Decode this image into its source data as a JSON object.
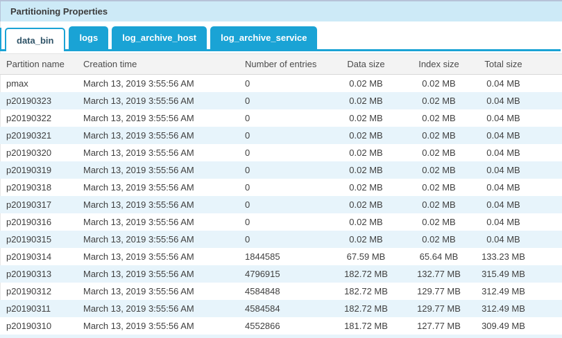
{
  "panel": {
    "title": "Partitioning Properties"
  },
  "tabs": [
    {
      "label": "data_bin",
      "active": true
    },
    {
      "label": "logs",
      "active": false
    },
    {
      "label": "log_archive_host",
      "active": false
    },
    {
      "label": "log_archive_service",
      "active": false
    }
  ],
  "table": {
    "columns": [
      "Partition name",
      "Creation time",
      "Number of entries",
      "Data size",
      "Index size",
      "Total size"
    ],
    "rows": [
      [
        "pmax",
        "March 13, 2019 3:55:56 AM",
        "0",
        "0.02 MB",
        "0.02 MB",
        "0.04 MB"
      ],
      [
        "p20190323",
        "March 13, 2019 3:55:56 AM",
        "0",
        "0.02 MB",
        "0.02 MB",
        "0.04 MB"
      ],
      [
        "p20190322",
        "March 13, 2019 3:55:56 AM",
        "0",
        "0.02 MB",
        "0.02 MB",
        "0.04 MB"
      ],
      [
        "p20190321",
        "March 13, 2019 3:55:56 AM",
        "0",
        "0.02 MB",
        "0.02 MB",
        "0.04 MB"
      ],
      [
        "p20190320",
        "March 13, 2019 3:55:56 AM",
        "0",
        "0.02 MB",
        "0.02 MB",
        "0.04 MB"
      ],
      [
        "p20190319",
        "March 13, 2019 3:55:56 AM",
        "0",
        "0.02 MB",
        "0.02 MB",
        "0.04 MB"
      ],
      [
        "p20190318",
        "March 13, 2019 3:55:56 AM",
        "0",
        "0.02 MB",
        "0.02 MB",
        "0.04 MB"
      ],
      [
        "p20190317",
        "March 13, 2019 3:55:56 AM",
        "0",
        "0.02 MB",
        "0.02 MB",
        "0.04 MB"
      ],
      [
        "p20190316",
        "March 13, 2019 3:55:56 AM",
        "0",
        "0.02 MB",
        "0.02 MB",
        "0.04 MB"
      ],
      [
        "p20190315",
        "March 13, 2019 3:55:56 AM",
        "0",
        "0.02 MB",
        "0.02 MB",
        "0.04 MB"
      ],
      [
        "p20190314",
        "March 13, 2019 3:55:56 AM",
        "1844585",
        "67.59 MB",
        "65.64 MB",
        "133.23 MB"
      ],
      [
        "p20190313",
        "March 13, 2019 3:55:56 AM",
        "4796915",
        "182.72 MB",
        "132.77 MB",
        "315.49 MB"
      ],
      [
        "p20190312",
        "March 13, 2019 3:55:56 AM",
        "4584848",
        "182.72 MB",
        "129.77 MB",
        "312.49 MB"
      ],
      [
        "p20190311",
        "March 13, 2019 3:55:56 AM",
        "4584584",
        "182.72 MB",
        "129.77 MB",
        "312.49 MB"
      ],
      [
        "p20190310",
        "March 13, 2019 3:55:56 AM",
        "4552866",
        "181.72 MB",
        "127.77 MB",
        "309.49 MB"
      ]
    ]
  },
  "colors": {
    "accent": "#1aa3d5",
    "titlebar_bg": "#cdeaf7",
    "titlebar_border": "#b6c2d8",
    "alt_row": "#e7f4fb",
    "header_bg": "#f3f3f3"
  }
}
